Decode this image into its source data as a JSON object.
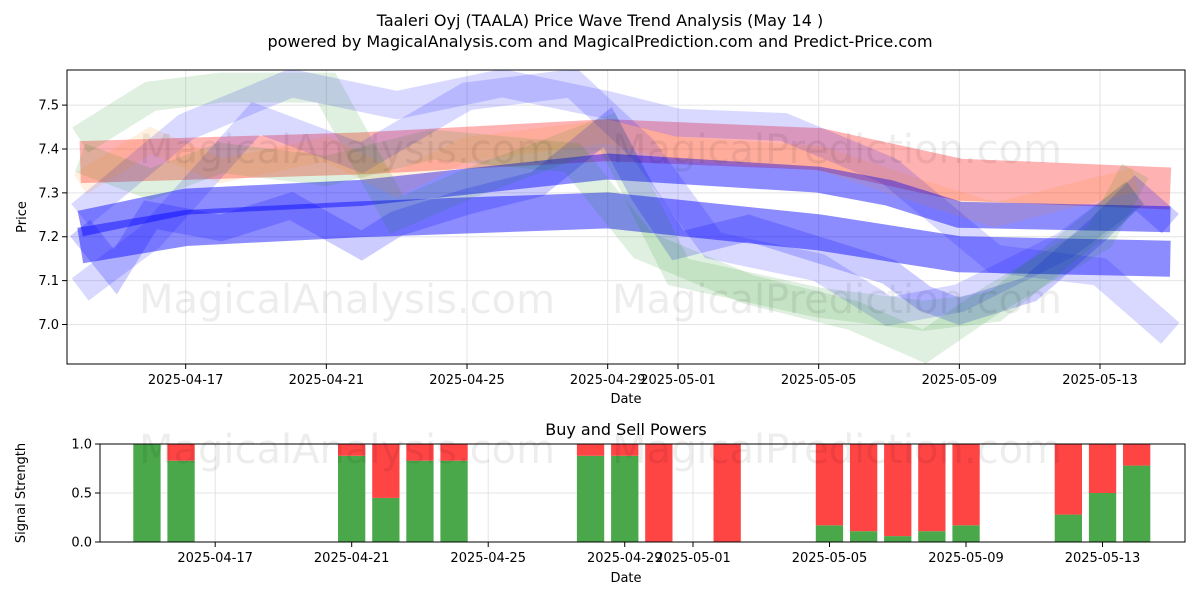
{
  "title_line1": "Taaleri Oyj (TAALA) Price Wave Trend Analysis (May 14 )",
  "title_line2": "powered by MagicalAnalysis.com and MagicalPrediction.com and Predict-Price.com",
  "watermark_left": "MagicalAnalysis.com",
  "watermark_right": "MagicalPrediction.com",
  "chart_data": [
    {
      "type": "line",
      "name": "price-wave-chart",
      "xlabel": "Date",
      "ylabel": "Price",
      "ylim": [
        6.91,
        7.58
      ],
      "x_range": [
        "2025-04-13T15:00",
        "2025-05-15T10:00"
      ],
      "x_ticks": [
        "2025-04-17",
        "2025-04-21",
        "2025-04-25",
        "2025-04-29",
        "2025-05-01",
        "2025-05-05",
        "2025-05-09",
        "2025-05-13"
      ],
      "y_ticks": [
        7.0,
        7.1,
        7.2,
        7.3,
        7.4,
        7.5
      ],
      "grid": true,
      "bands": [
        {
          "color": "#ff0000",
          "alpha": 0.3,
          "width": 42,
          "x": [
            "2025-04-14",
            "2025-04-22",
            "2025-04-29",
            "2025-05-05",
            "2025-05-09",
            "2025-05-15"
          ],
          "y": [
            7.37,
            7.39,
            7.42,
            7.4,
            7.33,
            7.31
          ]
        },
        {
          "color": "#0000ff",
          "alpha": 0.45,
          "width": 36,
          "x": [
            "2025-04-14",
            "2025-04-17",
            "2025-04-22",
            "2025-04-29",
            "2025-05-05",
            "2025-05-09",
            "2025-05-15"
          ],
          "y": [
            7.18,
            7.22,
            7.24,
            7.26,
            7.21,
            7.16,
            7.15
          ]
        },
        {
          "color": "#0000ff",
          "alpha": 0.45,
          "width": 26,
          "x": [
            "2025-04-14",
            "2025-04-17",
            "2025-04-22",
            "2025-04-29",
            "2025-05-05",
            "2025-05-07",
            "2025-05-09",
            "2025-05-15"
          ],
          "y": [
            7.23,
            7.28,
            7.3,
            7.36,
            7.33,
            7.3,
            7.25,
            7.24
          ]
        },
        {
          "color": "#0000ff",
          "alpha": 0.2,
          "width": 26,
          "x": [
            "2025-04-14",
            "2025-04-15",
            "2025-04-16",
            "2025-04-18",
            "2025-04-20",
            "2025-04-22",
            "2025-04-23",
            "2025-04-25",
            "2025-04-27",
            "2025-04-29",
            "2025-04-30",
            "2025-05-01",
            "2025-05-03",
            "2025-05-05",
            "2025-05-07",
            "2025-05-08",
            "2025-05-09",
            "2025-05-11",
            "2025-05-13",
            "2025-05-14",
            "2025-05-15"
          ],
          "y": [
            7.22,
            7.12,
            7.25,
            7.22,
            7.27,
            7.18,
            7.23,
            7.28,
            7.32,
            7.45,
            7.3,
            7.18,
            7.22,
            7.17,
            7.12,
            7.06,
            7.03,
            7.08,
            7.22,
            7.3,
            7.23
          ]
        },
        {
          "color": "#0000ff",
          "alpha": 0.15,
          "width": 28,
          "x": [
            "2025-04-14",
            "2025-04-16",
            "2025-04-19",
            "2025-04-22",
            "2025-04-25",
            "2025-04-28",
            "2025-04-30",
            "2025-05-02",
            "2025-05-05",
            "2025-05-07",
            "2025-05-09",
            "2025-05-12",
            "2025-05-14"
          ],
          "y": [
            7.08,
            7.2,
            7.47,
            7.38,
            7.52,
            7.55,
            7.4,
            7.18,
            7.13,
            7.03,
            7.06,
            7.18,
            7.3
          ]
        },
        {
          "color": "#0000ff",
          "alpha": 0.15,
          "width": 28,
          "x": [
            "2025-04-14",
            "2025-04-17",
            "2025-04-20",
            "2025-04-23",
            "2025-04-26",
            "2025-04-29",
            "2025-05-01",
            "2025-05-04",
            "2025-05-07",
            "2025-05-10",
            "2025-05-13",
            "2025-05-15"
          ],
          "y": [
            7.25,
            7.45,
            7.55,
            7.5,
            7.55,
            7.5,
            7.46,
            7.45,
            7.35,
            7.15,
            7.12,
            6.98
          ]
        },
        {
          "color": "#008000",
          "alpha": 0.12,
          "width": 30,
          "x": [
            "2025-04-14",
            "2025-04-16",
            "2025-04-18",
            "2025-04-21",
            "2025-04-23",
            "2025-04-25",
            "2025-04-29",
            "2025-05-01",
            "2025-05-05",
            "2025-05-08",
            "2025-05-10",
            "2025-05-14"
          ],
          "y": [
            7.42,
            7.52,
            7.54,
            7.54,
            7.25,
            7.32,
            7.44,
            7.12,
            7.05,
            7.02,
            7.04,
            7.3
          ]
        },
        {
          "color": "#008000",
          "alpha": 0.12,
          "width": 30,
          "x": [
            "2025-04-14",
            "2025-04-16",
            "2025-04-18",
            "2025-04-21",
            "2025-04-24",
            "2025-04-28",
            "2025-04-30",
            "2025-05-03",
            "2025-05-06",
            "2025-05-08",
            "2025-05-10",
            "2025-05-13",
            "2025-05-14"
          ],
          "y": [
            7.38,
            7.32,
            7.38,
            7.35,
            7.41,
            7.38,
            7.18,
            7.08,
            7.02,
            6.95,
            7.06,
            7.2,
            7.35
          ]
        },
        {
          "color": "#ff8000",
          "alpha": 0.12,
          "width": 24,
          "x": [
            "2025-04-14",
            "2025-04-16",
            "2025-04-18",
            "2025-04-21",
            "2025-04-23",
            "2025-04-25",
            "2025-04-29",
            "2025-05-01",
            "2025-05-05",
            "2025-05-08",
            "2025-05-10",
            "2025-05-14"
          ],
          "y": [
            7.32,
            7.42,
            7.35,
            7.4,
            7.32,
            7.4,
            7.44,
            7.4,
            7.38,
            7.3,
            7.25,
            7.33
          ]
        }
      ]
    },
    {
      "type": "bar",
      "name": "buy-sell-powers-chart",
      "title": "Buy and Sell Powers",
      "xlabel": "Date",
      "ylabel": "Signal Strength",
      "ylim": [
        0,
        1.0
      ],
      "x_range": [
        "2025-04-13T15:00",
        "2025-05-15T10:00"
      ],
      "x_ticks": [
        "2025-04-17",
        "2025-04-21",
        "2025-04-25",
        "2025-04-29",
        "2025-05-01",
        "2025-05-05",
        "2025-05-09",
        "2025-05-13"
      ],
      "y_ticks": [
        0.0,
        0.5,
        1.0
      ],
      "grid": true,
      "buy_color": "#4aa84a",
      "sell_color": "#ff4444",
      "categories": [
        "2025-04-15",
        "2025-04-16",
        "2025-04-21",
        "2025-04-22",
        "2025-04-23",
        "2025-04-24",
        "2025-04-28",
        "2025-04-29",
        "2025-04-30",
        "2025-05-02",
        "2025-05-05",
        "2025-05-06",
        "2025-05-07",
        "2025-05-08",
        "2025-05-09",
        "2025-05-12",
        "2025-05-13",
        "2025-05-14"
      ],
      "series": [
        {
          "name": "Buy",
          "values": [
            1.0,
            0.83,
            0.88,
            0.45,
            0.83,
            0.83,
            0.88,
            0.88,
            0.0,
            0.0,
            0.17,
            0.11,
            0.06,
            0.11,
            0.17,
            0.28,
            0.5,
            0.78
          ]
        },
        {
          "name": "Sell",
          "values": [
            0.0,
            0.17,
            0.12,
            0.55,
            0.17,
            0.17,
            0.12,
            0.12,
            1.0,
            1.0,
            0.83,
            0.89,
            0.94,
            0.89,
            0.83,
            0.72,
            0.5,
            0.22
          ]
        }
      ]
    }
  ]
}
